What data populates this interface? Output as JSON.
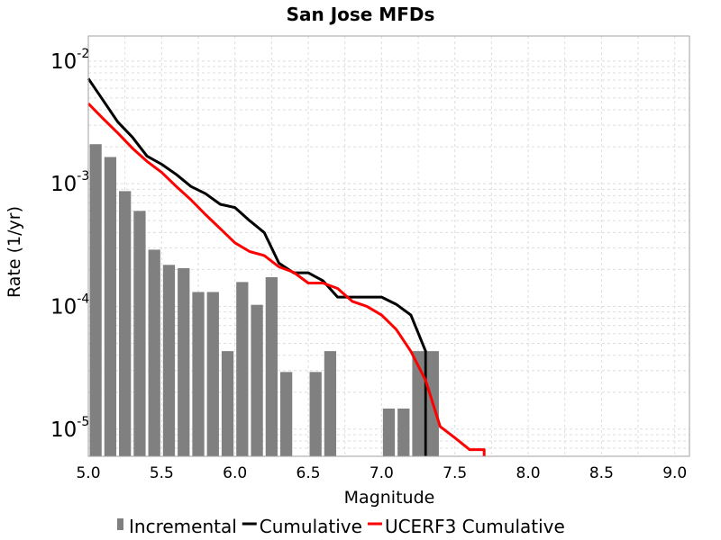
{
  "chart_data": {
    "type": "bar+line",
    "title": "San Jose MFDs",
    "xlabel": "Magnitude",
    "ylabel": "Rate (1/yr)",
    "xlim": [
      5.0,
      9.1
    ],
    "ylim": [
      6e-06,
      0.016
    ],
    "yscale": "log",
    "grid": true,
    "legend_position": "bottom",
    "x_ticks": [
      "5.0",
      "5.5",
      "6.0",
      "6.5",
      "7.0",
      "7.5",
      "8.0",
      "8.5",
      "9.0"
    ],
    "y_ticks": [
      {
        "value": 1e-05,
        "base": "10",
        "exp": "-5"
      },
      {
        "value": 0.0001,
        "base": "10",
        "exp": "-4"
      },
      {
        "value": 0.001,
        "base": "10",
        "exp": "-3"
      },
      {
        "value": 0.01,
        "base": "10",
        "exp": "-2"
      }
    ],
    "bar_width": 0.1,
    "series": [
      {
        "name": "Incremental",
        "kind": "bar",
        "color": "#808080",
        "x": [
          5.05,
          5.15,
          5.25,
          5.35,
          5.45,
          5.55,
          5.65,
          5.75,
          5.85,
          5.95,
          6.05,
          6.15,
          6.25,
          6.35,
          6.45,
          6.55,
          6.65,
          6.75,
          6.85,
          6.95,
          7.05,
          7.15,
          7.25,
          7.35
        ],
        "y": [
          0.0021,
          0.00165,
          0.00087,
          0.0006,
          0.00029,
          0.000218,
          0.000205,
          0.000131,
          0.000131,
          4.32e-05,
          0.000158,
          0.000103,
          0.000173,
          2.92e-05,
          0,
          2.92e-05,
          4.32e-05,
          0,
          0,
          0,
          1.47e-05,
          1.47e-05,
          4.32e-05,
          4.32e-05
        ]
      },
      {
        "name": "Cumulative",
        "kind": "line",
        "color": "#000000",
        "x": [
          5.0,
          5.1,
          5.2,
          5.3,
          5.4,
          5.5,
          5.6,
          5.7,
          5.8,
          5.9,
          6.0,
          6.1,
          6.2,
          6.3,
          6.4,
          6.5,
          6.6,
          6.7,
          6.8,
          6.9,
          7.0,
          7.1,
          7.2,
          7.3,
          7.3
        ],
        "y": [
          0.0072,
          0.0048,
          0.0032,
          0.0024,
          0.00168,
          0.00144,
          0.00119,
          0.00095,
          0.00083,
          0.00068,
          0.00064,
          0.0005,
          0.0004,
          0.000225,
          0.000188,
          0.000188,
          0.000162,
          0.000119,
          0.000119,
          0.000119,
          0.000119,
          0.000104,
          8.5e-05,
          4.32e-05,
          6e-06
        ]
      },
      {
        "name": "UCERF3 Cumulative",
        "kind": "line",
        "color": "#ff0000",
        "x": [
          5.0,
          5.1,
          5.2,
          5.3,
          5.4,
          5.5,
          5.6,
          5.7,
          5.8,
          5.9,
          6.0,
          6.1,
          6.2,
          6.3,
          6.4,
          6.5,
          6.6,
          6.7,
          6.8,
          6.9,
          7.0,
          7.1,
          7.2,
          7.3,
          7.4,
          7.5,
          7.6,
          7.7,
          7.7
        ],
        "y": [
          0.0045,
          0.0034,
          0.0026,
          0.00195,
          0.00152,
          0.00124,
          0.00095,
          0.00074,
          0.00056,
          0.00043,
          0.00033,
          0.00028,
          0.00026,
          0.00021,
          0.00019,
          0.000155,
          0.000155,
          0.00014,
          0.00011,
          0.0001,
          8.5e-05,
          6.5e-05,
          4.3e-05,
          2.5e-05,
          1.05e-05,
          8.5e-06,
          6.8e-06,
          6.8e-06,
          6e-06
        ]
      }
    ]
  }
}
